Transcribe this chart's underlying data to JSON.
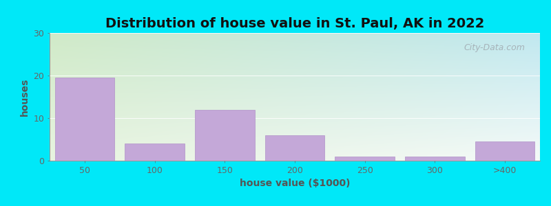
{
  "title": "Distribution of house value in St. Paul, AK in 2022",
  "xlabel": "house value ($1000)",
  "ylabel": "houses",
  "categories": [
    "50",
    "100",
    "150",
    "200",
    "250",
    "300",
    ">400"
  ],
  "values": [
    19.5,
    4.0,
    12.0,
    6.0,
    1.0,
    1.0,
    4.5
  ],
  "bar_color": "#c4a8d8",
  "bar_edgecolor": "#b090c8",
  "ylim": [
    0,
    30
  ],
  "yticks": [
    0,
    10,
    20,
    30
  ],
  "background_outer": "#00e8f8",
  "bg_topleft": "#cde8c8",
  "bg_topright": "#c8e8f0",
  "bg_bottomleft": "#e0f0d8",
  "bg_bottomright": "#f0f8f4",
  "title_fontsize": 14,
  "axis_label_fontsize": 10,
  "tick_fontsize": 9,
  "watermark_text": "City-Data.com"
}
